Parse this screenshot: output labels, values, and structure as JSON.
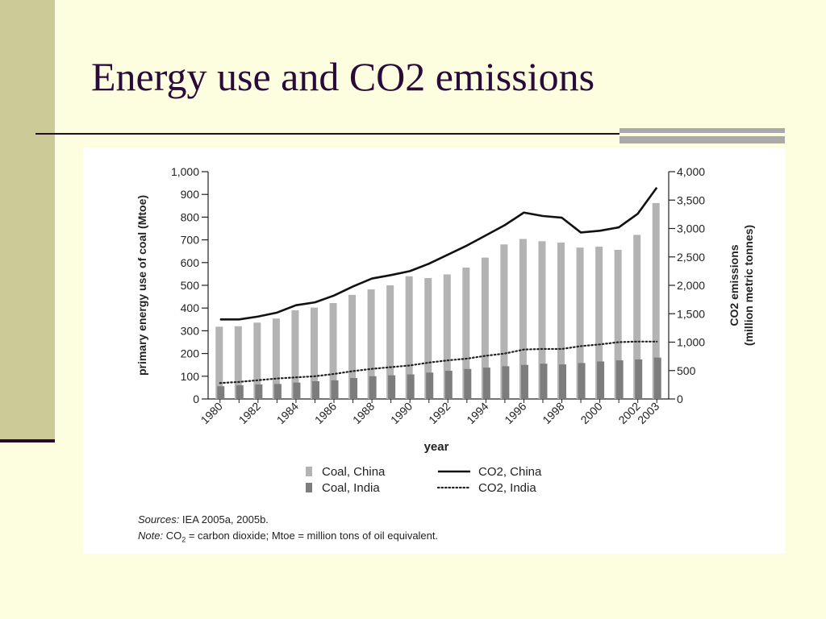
{
  "slide": {
    "title": "Energy use and CO2 emissions"
  },
  "notes": {
    "sources_label": "Sources:",
    "sources_text": " IEA 2005a, 2005b.",
    "note_label": "Note:",
    "note_co": " CO",
    "note_sub": "2",
    "note_rest": " = carbon dioxide; Mtoe = million tons of oil equivalent."
  },
  "colors": {
    "coal_china": "#b3b3b3",
    "coal_india": "#7d7d7d",
    "co2_china": "#111111",
    "co2_india": "#222222"
  },
  "chart_data": {
    "type": "bar",
    "title": "",
    "xlabel": "year",
    "ylabel_left": "primary energy use of coal (Mtoe)",
    "ylabel_right_line1": "CO2 emissions",
    "ylabel_right_line2": "(million metric tonnes)",
    "ylim_left": [
      0,
      1000
    ],
    "ylim_right": [
      0,
      4000
    ],
    "yticks_left": [
      "0",
      "100",
      "200",
      "300",
      "400",
      "500",
      "600",
      "700",
      "800",
      "900",
      "1,000"
    ],
    "yticks_right": [
      "0",
      "500",
      "1,000",
      "1,500",
      "2,000",
      "2,500",
      "3,000",
      "3,500",
      "4,000"
    ],
    "categories": [
      "1980",
      "1981",
      "1982",
      "1983",
      "1984",
      "1985",
      "1986",
      "1987",
      "1988",
      "1989",
      "1990",
      "1991",
      "1992",
      "1993",
      "1994",
      "1995",
      "1996",
      "1997",
      "1998",
      "1999",
      "2000",
      "2001",
      "2002",
      "2003"
    ],
    "xtick_labels": [
      "1980",
      "1982",
      "1984",
      "1986",
      "1988",
      "1990",
      "1992",
      "1994",
      "1996",
      "1998",
      "2000",
      "2002",
      "2003"
    ],
    "legend_placement": "bottom",
    "series": [
      {
        "name": "Coal, China",
        "kind": "bar",
        "axis": "left",
        "values": [
          318,
          320,
          336,
          354,
          390,
          402,
          422,
          458,
          482,
          500,
          540,
          532,
          548,
          578,
          622,
          680,
          704,
          694,
          688,
          666,
          670,
          656,
          722,
          862
        ]
      },
      {
        "name": "Coal, India",
        "kind": "bar",
        "axis": "left",
        "values": [
          56,
          60,
          64,
          66,
          72,
          78,
          82,
          92,
          100,
          104,
          108,
          116,
          124,
          132,
          138,
          144,
          150,
          155,
          152,
          158,
          165,
          170,
          174,
          182
        ]
      },
      {
        "name": "CO2, China",
        "kind": "line",
        "axis": "right",
        "values": [
          1400,
          1400,
          1450,
          1520,
          1650,
          1700,
          1820,
          1980,
          2120,
          2180,
          2250,
          2380,
          2540,
          2700,
          2880,
          3060,
          3280,
          3220,
          3190,
          2930,
          2960,
          3020,
          3260,
          3720
        ]
      },
      {
        "name": "CO2, India",
        "kind": "line",
        "style": "dotted",
        "axis": "right",
        "values": [
          280,
          300,
          330,
          360,
          380,
          400,
          440,
          490,
          530,
          560,
          590,
          640,
          680,
          710,
          760,
          800,
          870,
          880,
          880,
          930,
          960,
          1000,
          1010,
          1010
        ]
      }
    ]
  }
}
